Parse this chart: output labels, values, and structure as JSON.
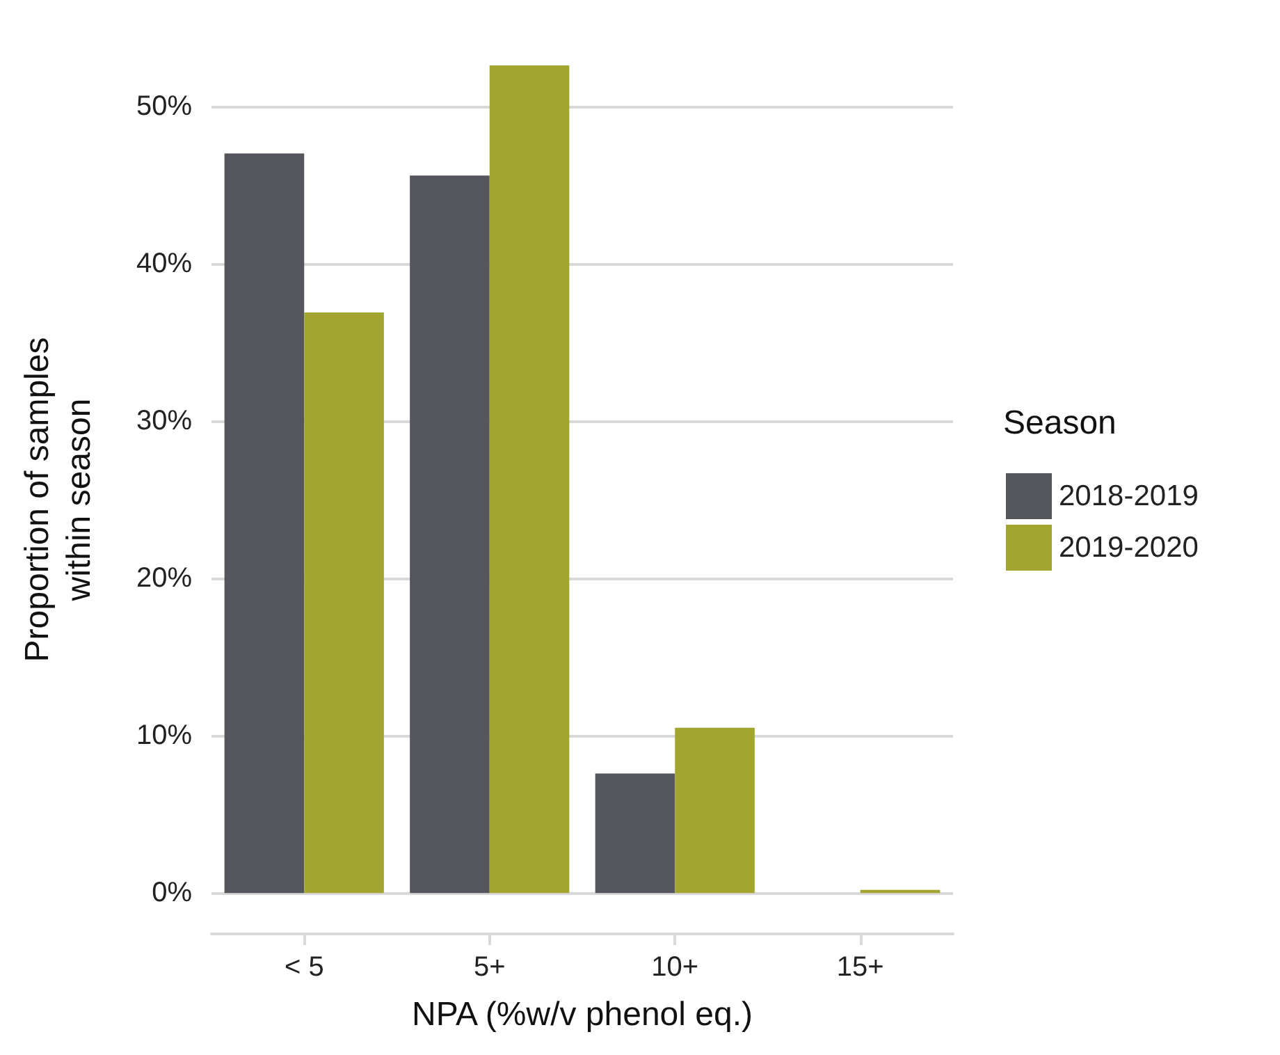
{
  "chart_data": {
    "type": "bar",
    "xlabel": "NPA (%w/v phenol eq.)",
    "ylabel": "Proportion of samples\nwithin season",
    "legend_title": "Season",
    "categories": [
      "< 5",
      "5+",
      "10+",
      "15+"
    ],
    "series": [
      {
        "name": "2018-2019",
        "color": "#55565b",
        "values": [
          47.0,
          45.6,
          7.6,
          0
        ]
      },
      {
        "name": "2019-2020",
        "color": "#a2a630",
        "values": [
          36.9,
          52.6,
          10.5,
          0.2
        ]
      }
    ],
    "ylim": [
      -2.6,
      52.6
    ],
    "yticks": [
      {
        "value": 0,
        "label": "0%"
      },
      {
        "value": 10,
        "label": "10%"
      },
      {
        "value": 20,
        "label": "20%"
      },
      {
        "value": 30,
        "label": "30%"
      },
      {
        "value": 40,
        "label": "40%"
      },
      {
        "value": 50,
        "label": "50%"
      }
    ],
    "grid": "y",
    "legend": "right"
  }
}
